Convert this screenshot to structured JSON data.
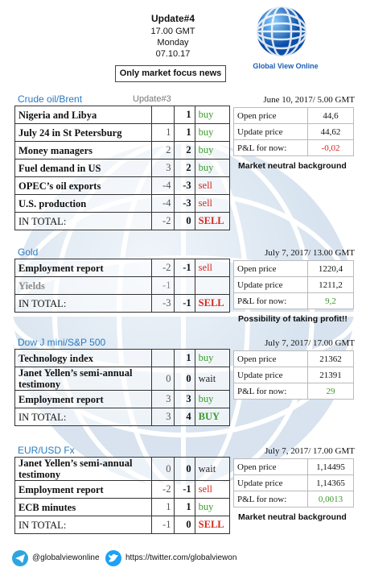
{
  "header": {
    "title": "Update#4",
    "time": "17.00 GMT",
    "day": "Monday",
    "date": "07.10.17",
    "focus": "Only market focus news",
    "logo": "Global View Online"
  },
  "sections": [
    {
      "name": "Crude oil/Brent",
      "update": "Update#3",
      "rows": [
        [
          "Nigeria and Libya",
          null,
          "1",
          "buy"
        ],
        [
          "July 24 in St Petersburg",
          "1",
          "1",
          "buy"
        ],
        [
          "Money managers",
          "2",
          "2",
          "buy"
        ],
        [
          "Fuel demand in US",
          "3",
          "2",
          "buy"
        ],
        [
          "OPEC’s oil exports",
          "-4",
          "-3",
          "sell"
        ],
        [
          "U.S. production",
          "-4",
          "-3",
          "sell"
        ]
      ],
      "total": [
        "IN TOTAL:",
        "-2",
        "0",
        "SELL"
      ],
      "price": {
        "date": "June 10, 2017/ 5.00 GMT",
        "rows": [
          [
            "Open price",
            "44,6"
          ],
          [
            "Update price",
            "44,62"
          ],
          [
            "P&L for now:",
            "-0,02"
          ]
        ]
      },
      "note": "Market neutral background"
    },
    {
      "name": "Gold",
      "rows": [
        [
          "Employment report",
          "-2",
          "-1",
          "sell"
        ],
        [
          "Yields",
          "-1",
          null,
          null
        ]
      ],
      "total": [
        "IN TOTAL:",
        "-3",
        "-1",
        "SELL"
      ],
      "price": {
        "date": "July 7, 2017/ 13.00 GMT",
        "rows": [
          [
            "Open price",
            "1220,4"
          ],
          [
            "Update price",
            "1211,2"
          ],
          [
            "P&L for now:",
            "9,2"
          ]
        ]
      },
      "note": "Possibility of taking profit!!"
    },
    {
      "name": "Dow J mini/S&P 500",
      "rows": [
        [
          "Technology index",
          null,
          "1",
          "buy"
        ],
        [
          "Janet Yellen’s semi-annual testimony",
          "0",
          "0",
          "wait"
        ],
        [
          "Employment report",
          "3",
          "3",
          "buy"
        ]
      ],
      "total": [
        "IN TOTAL:",
        "3",
        "4",
        "BUY"
      ],
      "price": {
        "date": "July 7, 2017/ 17.00 GMT",
        "rows": [
          [
            "Open price",
            "21362"
          ],
          [
            "Update price",
            "21391"
          ],
          [
            "P&L for now:",
            "29"
          ]
        ]
      }
    },
    {
      "name": "EUR/USD Fx",
      "rows": [
        [
          "Janet Yellen’s semi-annual testimony",
          "0",
          "0",
          "wait"
        ],
        [
          "Employment report",
          "-2",
          "-1",
          "sell"
        ],
        [
          "ECB minutes",
          "1",
          "1",
          "buy"
        ]
      ],
      "total": [
        "IN TOTAL:",
        "-1",
        "0",
        "SELL"
      ],
      "price": {
        "date": "July 7, 2017/ 17.00 GMT",
        "rows": [
          [
            "Open price",
            "1,14495"
          ],
          [
            "Update price",
            "1,14365"
          ],
          [
            "P&L for now:",
            "0,0013"
          ]
        ]
      },
      "note": "Market neutral background"
    }
  ],
  "footer": {
    "telegram": "@globalviewonline",
    "twitter": "https://twitter.com/globalviewon"
  }
}
